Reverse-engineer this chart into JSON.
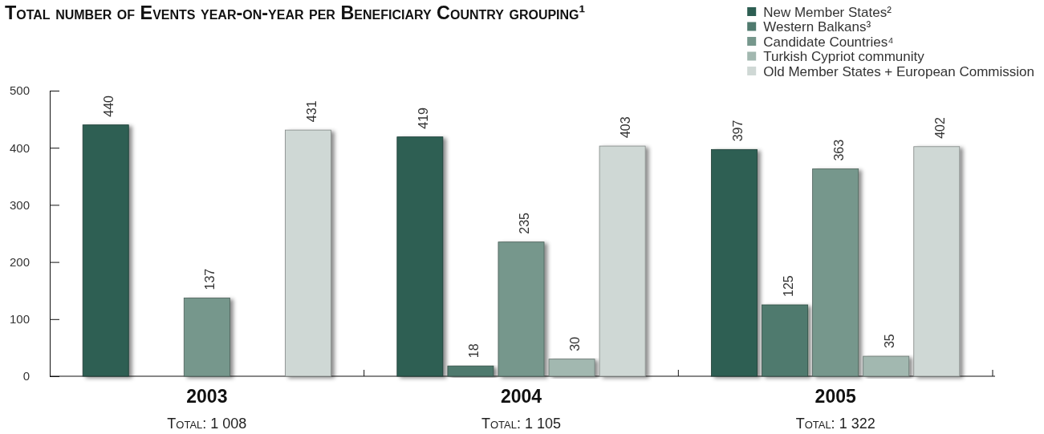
{
  "chart_data": {
    "type": "bar",
    "title": "Total number of Events year-on-year per Beneficiary Country grouping¹",
    "categories": [
      "2003",
      "2004",
      "2005"
    ],
    "series": [
      {
        "name": "New Member States²",
        "color": "#2d5e52",
        "values": [
          440,
          419,
          397
        ]
      },
      {
        "name": "Western Balkans³",
        "color": "#4f7a6e",
        "values": [
          null,
          18,
          125
        ]
      },
      {
        "name": "Candidate Countries⁴",
        "color": "#76978c",
        "values": [
          137,
          235,
          363
        ]
      },
      {
        "name": "Turkish Cypriot community",
        "color": "#a2b8b0",
        "values": [
          null,
          30,
          35
        ]
      },
      {
        "name": "Old Member States + European Commission",
        "color": "#cfd8d5",
        "values": [
          431,
          403,
          402
        ]
      }
    ],
    "ylim": [
      0,
      500
    ],
    "yticks": [
      0,
      100,
      200,
      300,
      400,
      500
    ],
    "data_labels": true,
    "totals": [
      "Total: 1 008",
      "Total: 1 105",
      "Total: 1 322"
    ],
    "legend": "top right"
  }
}
